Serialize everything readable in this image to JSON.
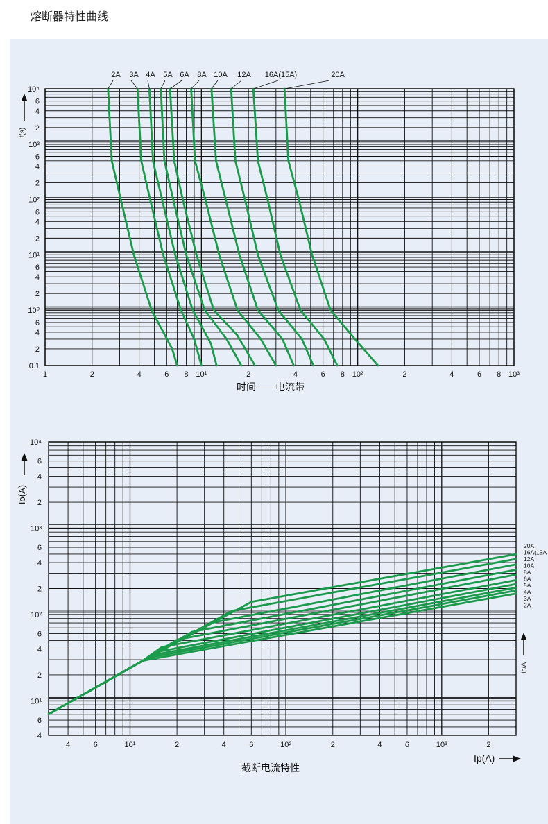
{
  "title": "熔断器特性曲线",
  "chart_data": [
    {
      "type": "line",
      "title": "",
      "xlabel": "时间——电流带",
      "ylabel": "t(s)",
      "xscale": "log",
      "yscale": "log",
      "xlim": [
        1,
        1000
      ],
      "ylim": [
        0.1,
        10000
      ],
      "grid": true,
      "x_tick_labels": [
        "1",
        "2",
        "4",
        "6",
        "8",
        "10¹",
        "2",
        "4",
        "6",
        "8",
        "10²",
        "2",
        "4",
        "6",
        "8",
        "10³"
      ],
      "y_tick_labels": [
        "0.1",
        "2",
        "4",
        "6",
        "10⁰",
        "2",
        "4",
        "6",
        "10¹",
        "2",
        "4",
        "6",
        "10²",
        "2",
        "4",
        "6",
        "10³",
        "2",
        "4",
        "6",
        "10⁴"
      ],
      "series": [
        {
          "name": "2A",
          "points": [
            [
              2.53,
              10000
            ],
            [
              2.67,
              500
            ],
            [
              3.05,
              100
            ],
            [
              3.7,
              10
            ],
            [
              4.8,
              1
            ],
            [
              6.5,
              0.2
            ],
            [
              7.0,
              0.1
            ]
          ]
        },
        {
          "name": "3A",
          "points": [
            [
              3.9,
              10000
            ],
            [
              4.12,
              500
            ],
            [
              4.7,
              100
            ],
            [
              5.7,
              10
            ],
            [
              7.4,
              1
            ],
            [
              9.0,
              0.3
            ],
            [
              10.0,
              0.1
            ]
          ]
        },
        {
          "name": "4A",
          "points": [
            [
              4.65,
              10000
            ],
            [
              4.9,
              500
            ],
            [
              5.6,
              100
            ],
            [
              6.8,
              10
            ],
            [
              8.8,
              1
            ],
            [
              11.5,
              0.25
            ],
            [
              12.5,
              0.1
            ]
          ]
        },
        {
          "name": "5A",
          "points": [
            [
              5.5,
              10000
            ],
            [
              5.8,
              500
            ],
            [
              6.6,
              100
            ],
            [
              8.0,
              10
            ],
            [
              10.5,
              1
            ],
            [
              14.5,
              0.3
            ],
            [
              18,
              0.1
            ]
          ]
        },
        {
          "name": "6A",
          "points": [
            [
              6.3,
              10000
            ],
            [
              6.7,
              500
            ],
            [
              7.6,
              100
            ],
            [
              9.3,
              10
            ],
            [
              12,
              1
            ],
            [
              17,
              0.35
            ],
            [
              22,
              0.1
            ]
          ]
        },
        {
          "name": "8A",
          "points": [
            [
              8.6,
              10000
            ],
            [
              9.1,
              500
            ],
            [
              10.6,
              100
            ],
            [
              13,
              10
            ],
            [
              17,
              1
            ],
            [
              24,
              0.3
            ],
            [
              30,
              0.1
            ]
          ]
        },
        {
          "name": "10A",
          "points": [
            [
              11.6,
              10000
            ],
            [
              12.4,
              500
            ],
            [
              14.3,
              100
            ],
            [
              17.5,
              10
            ],
            [
              23,
              1
            ],
            [
              33,
              0.3
            ],
            [
              39,
              0.1
            ]
          ]
        },
        {
          "name": "12A",
          "points": [
            [
              15.5,
              10000
            ],
            [
              16.5,
              500
            ],
            [
              19,
              100
            ],
            [
              23,
              10
            ],
            [
              31,
              1
            ],
            [
              44,
              0.3
            ],
            [
              52,
              0.1
            ]
          ]
        },
        {
          "name": "16A(15A)",
          "points": [
            [
              21.5,
              10000
            ],
            [
              23,
              500
            ],
            [
              26.5,
              100
            ],
            [
              32,
              10
            ],
            [
              43,
              1
            ],
            [
              61,
              0.3
            ],
            [
              74,
              0.1
            ]
          ]
        },
        {
          "name": "20A",
          "points": [
            [
              34,
              10000
            ],
            [
              36,
              500
            ],
            [
              42,
              100
            ],
            [
              51,
              10
            ],
            [
              67,
              1
            ],
            [
              96,
              0.3
            ],
            [
              135,
              0.1
            ]
          ]
        }
      ]
    },
    {
      "type": "line",
      "title": "",
      "xlabel": "Ip(A)",
      "ylabel": "Io(A)",
      "caption": "截断电流特性",
      "right_axis_label": "In/A",
      "xscale": "log",
      "yscale": "log",
      "xlim": [
        3,
        3000
      ],
      "ylim": [
        4,
        10000
      ],
      "grid": true,
      "x_tick_labels": [
        "4",
        "6",
        "10¹",
        "2",
        "4",
        "6",
        "10²",
        "2",
        "4",
        "6",
        "10³",
        "2"
      ],
      "y_tick_labels": [
        "4",
        "6",
        "10¹",
        "2",
        "4",
        "6",
        "10²",
        "2",
        "4",
        "6",
        "10³",
        "2",
        "4",
        "6",
        "10⁴"
      ],
      "series": [
        {
          "name": "20A",
          "points": [
            [
              3,
              7
            ],
            [
              12,
              29
            ],
            [
              60,
              140
            ],
            [
              3000,
              500
            ]
          ]
        },
        {
          "name": "16A(15A",
          "points": [
            [
              3,
              7
            ],
            [
              12,
              29
            ],
            [
              45,
              110
            ],
            [
              3000,
              440
            ]
          ]
        },
        {
          "name": "12A",
          "points": [
            [
              3,
              7
            ],
            [
              12,
              29
            ],
            [
              33,
              80
            ],
            [
              3000,
              380
            ]
          ]
        },
        {
          "name": "10A",
          "points": [
            [
              3,
              7
            ],
            [
              12,
              29
            ],
            [
              25,
              63
            ],
            [
              3000,
              330
            ]
          ]
        },
        {
          "name": "8A",
          "points": [
            [
              3,
              7
            ],
            [
              12,
              29
            ],
            [
              20,
              51
            ],
            [
              3000,
              290
            ]
          ]
        },
        {
          "name": "6A",
          "points": [
            [
              3,
              7
            ],
            [
              12,
              29
            ],
            [
              16,
              42
            ],
            [
              3000,
              250
            ]
          ]
        },
        {
          "name": "5A",
          "points": [
            [
              3,
              7
            ],
            [
              12,
              29
            ],
            [
              15,
              37
            ],
            [
              3000,
              225
            ]
          ]
        },
        {
          "name": "4A",
          "points": [
            [
              3,
              7
            ],
            [
              12,
              29
            ],
            [
              14,
              34
            ],
            [
              3000,
              205
            ]
          ]
        },
        {
          "name": "3A",
          "points": [
            [
              3,
              7
            ],
            [
              12,
              29
            ],
            [
              13.5,
              32
            ],
            [
              3000,
              190
            ]
          ]
        },
        {
          "name": "2A",
          "points": [
            [
              3,
              7
            ],
            [
              12,
              29
            ],
            [
              13,
              30
            ],
            [
              3000,
              175
            ]
          ]
        }
      ]
    }
  ],
  "colors": {
    "curve": "#1a9a4a",
    "grid": "#111111",
    "background": "#e8eef8"
  },
  "icons": {
    "y_axis_arrow": "arrow-up-icon",
    "x_axis_arrow": "arrow-right-icon",
    "rating_arrow": "arrow-up-icon"
  }
}
